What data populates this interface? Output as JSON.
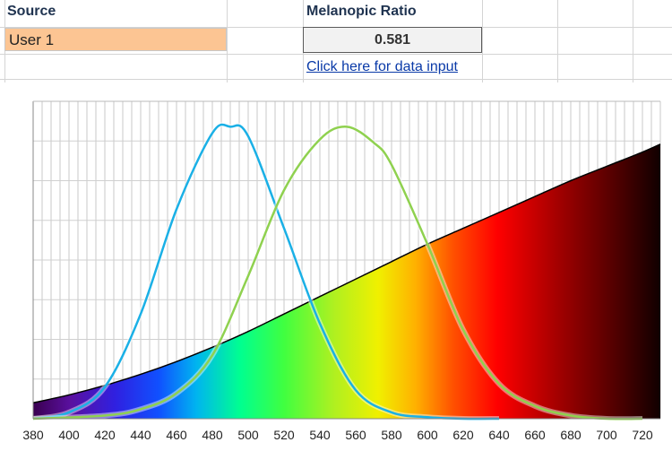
{
  "sheet": {
    "source_header": "Source",
    "ratio_header": "Melanopic Ratio",
    "source_value": "User 1",
    "ratio_value": "0.581",
    "link_text": "Click here for data input",
    "source_fill": "#fcc593",
    "link_color": "#0a3aa8"
  },
  "chart_data": {
    "type": "area",
    "x_ticks": [
      "380",
      "400",
      "420",
      "440",
      "460",
      "480",
      "500",
      "520",
      "540",
      "560",
      "580",
      "600",
      "620",
      "640",
      "660",
      "680",
      "700",
      "720"
    ],
    "xlim": [
      380,
      730
    ],
    "ylim": [
      0,
      1
    ],
    "grid": true,
    "series": [
      {
        "kind": "filled-spectrum",
        "color": "#000000",
        "x": [
          380,
          400,
          420,
          440,
          460,
          480,
          500,
          520,
          540,
          560,
          580,
          600,
          620,
          640,
          660,
          680,
          700,
          720,
          730
        ],
        "y": [
          0.05,
          0.075,
          0.105,
          0.14,
          0.18,
          0.225,
          0.275,
          0.33,
          0.385,
          0.44,
          0.495,
          0.55,
          0.6,
          0.65,
          0.7,
          0.75,
          0.795,
          0.84,
          0.865
        ]
      },
      {
        "kind": "curve",
        "color": "#1ab0e6",
        "x": [
          380,
          400,
          420,
          440,
          460,
          480,
          490,
          500,
          520,
          540,
          560,
          580,
          600,
          620,
          640
        ],
        "y": [
          0.0,
          0.02,
          0.1,
          0.33,
          0.66,
          0.9,
          0.92,
          0.89,
          0.6,
          0.3,
          0.09,
          0.02,
          0.005,
          0.0,
          0.0
        ]
      },
      {
        "kind": "curve",
        "color": "#8fd14f",
        "x": [
          380,
          420,
          440,
          460,
          480,
          500,
          520,
          540,
          555,
          570,
          580,
          600,
          620,
          640,
          660,
          680,
          700,
          720
        ],
        "y": [
          0.0,
          0.01,
          0.03,
          0.08,
          0.2,
          0.45,
          0.72,
          0.88,
          0.92,
          0.87,
          0.8,
          0.55,
          0.28,
          0.11,
          0.04,
          0.01,
          0.0,
          0.0
        ]
      }
    ]
  }
}
